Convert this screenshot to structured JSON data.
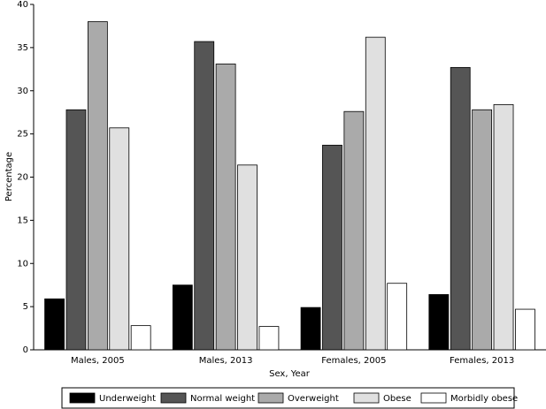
{
  "chart_data": {
    "type": "bar",
    "x_label": "Sex, Year",
    "y_label": "Percentage",
    "categories": [
      "Males, 2005",
      "Males, 2013",
      "Females, 2005",
      "Females, 2013"
    ],
    "series": [
      {
        "name": "Underweight",
        "color": "#000000",
        "values": [
          5.9,
          7.5,
          4.9,
          6.4
        ]
      },
      {
        "name": "Normal weight",
        "color": "#555555",
        "values": [
          27.8,
          35.7,
          23.7,
          32.7
        ]
      },
      {
        "name": "Overweight",
        "color": "#aaaaaa",
        "values": [
          38.0,
          33.1,
          27.6,
          27.8
        ]
      },
      {
        "name": "Obese",
        "color": "#e0e0e0",
        "values": [
          25.7,
          21.4,
          36.2,
          28.4
        ]
      },
      {
        "name": "Morbidly obese",
        "color": "#ffffff",
        "values": [
          2.8,
          2.7,
          7.7,
          4.7
        ]
      }
    ],
    "ylim": [
      0,
      40
    ],
    "yticks": [
      0,
      5,
      10,
      15,
      20,
      25,
      30,
      35,
      40
    ],
    "grid": false,
    "legend": "bottom"
  }
}
